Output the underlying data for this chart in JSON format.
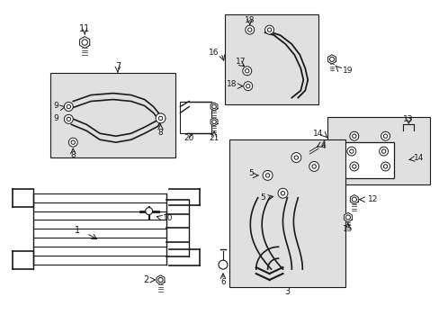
{
  "background_color": "#ffffff",
  "line_color": "#1a1a1a",
  "box_fill": "#e0e0e0",
  "figsize": [
    4.89,
    3.6
  ],
  "dpi": 100
}
